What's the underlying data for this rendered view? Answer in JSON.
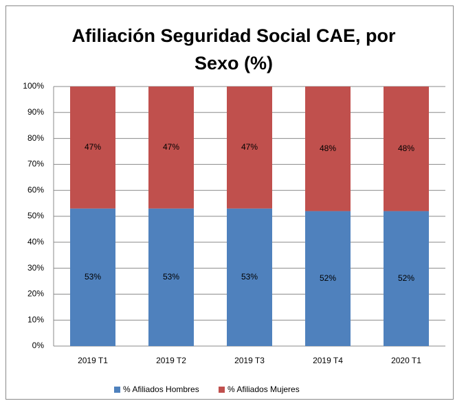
{
  "chart_data": {
    "type": "stacked_bar",
    "title": "Afiliación Seguridad Social CAE, por Sexo (%)",
    "categories": [
      "2019 T1",
      "2019 T2",
      "2019 T3",
      "2019 T4",
      "2020 T1"
    ],
    "series": [
      {
        "name": "% Afiliados Hombres",
        "color": "#4f81bd",
        "values": [
          53,
          53,
          53,
          52,
          52
        ],
        "value_labels": [
          "53%",
          "53%",
          "53%",
          "52%",
          "52%"
        ]
      },
      {
        "name": "% Afiliados Mujeres",
        "color": "#c0504d",
        "values": [
          47,
          47,
          47,
          48,
          48
        ],
        "value_labels": [
          "47%",
          "47%",
          "47%",
          "48%",
          "48%"
        ]
      }
    ],
    "ylim": [
      0,
      100
    ],
    "yticks": [
      {
        "value": 0,
        "label": "0%"
      },
      {
        "value": 10,
        "label": "10%"
      },
      {
        "value": 20,
        "label": "20%"
      },
      {
        "value": 30,
        "label": "30%"
      },
      {
        "value": 40,
        "label": "40%"
      },
      {
        "value": 50,
        "label": "50%"
      },
      {
        "value": 60,
        "label": "60%"
      },
      {
        "value": 70,
        "label": "70%"
      },
      {
        "value": 80,
        "label": "80%"
      },
      {
        "value": 90,
        "label": "90%"
      },
      {
        "value": 100,
        "label": "100%"
      }
    ],
    "grid": true,
    "legend": "bottom"
  }
}
